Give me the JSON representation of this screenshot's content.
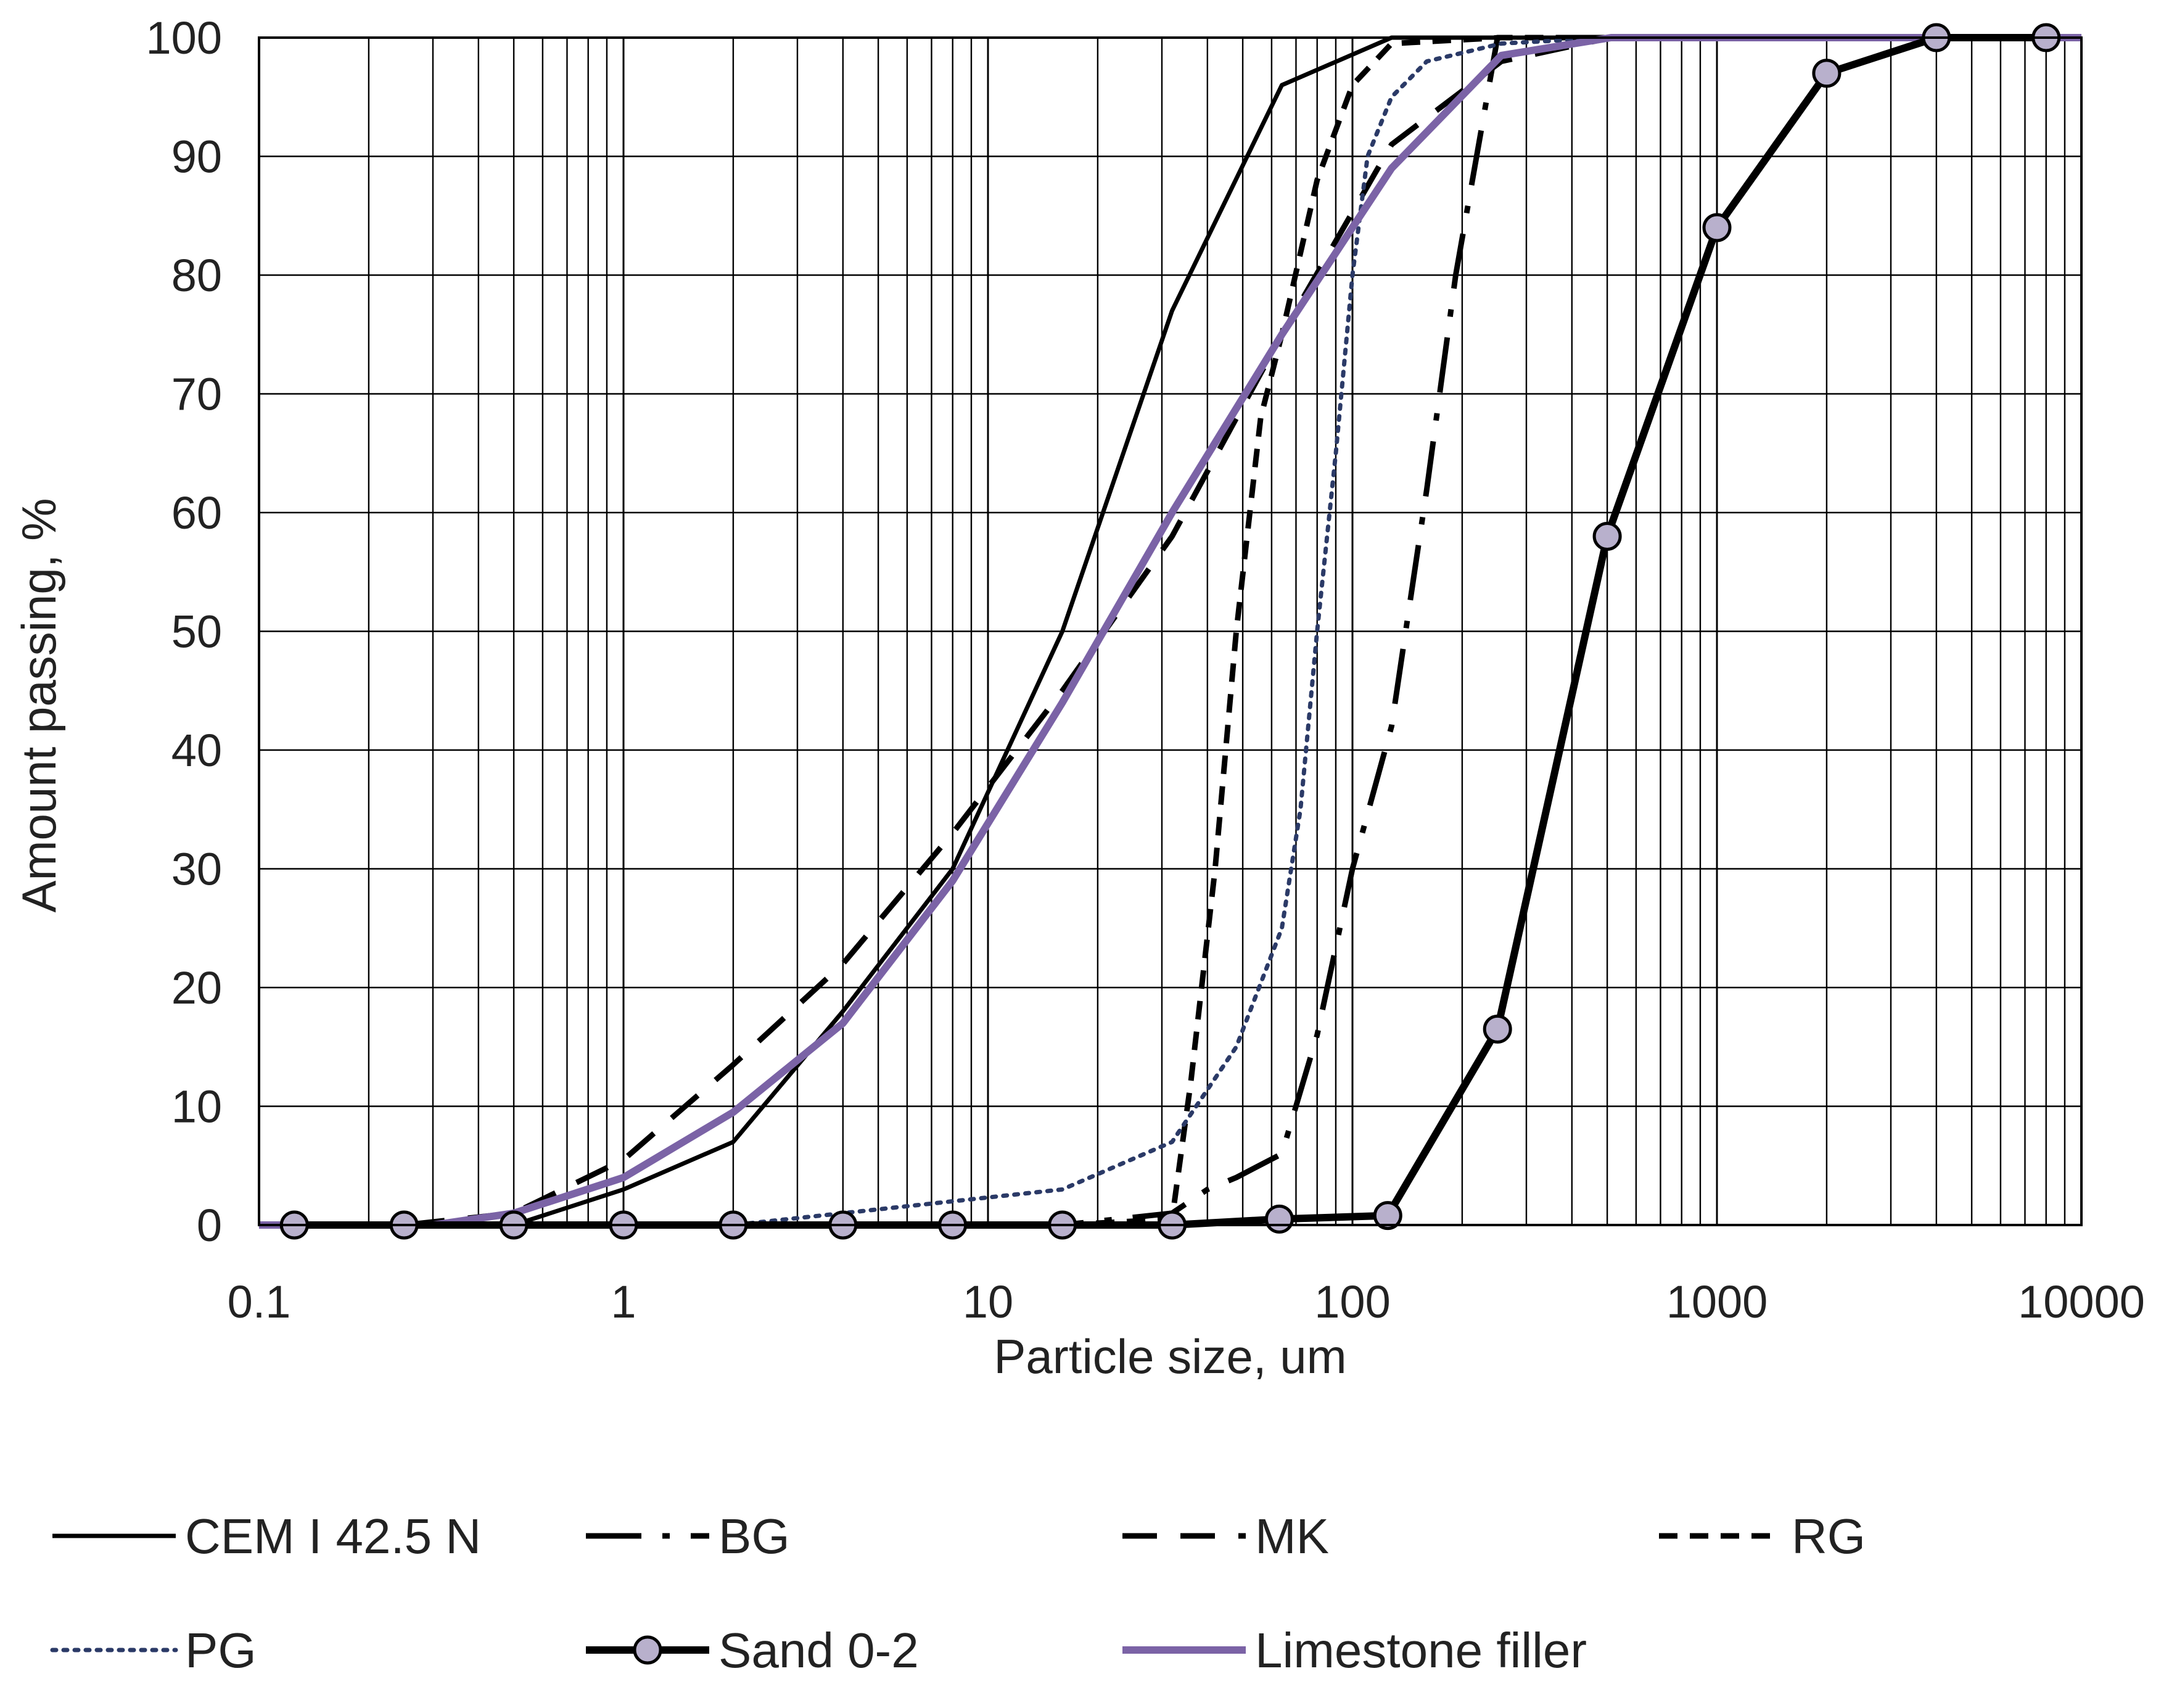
{
  "chart_data": {
    "type": "line",
    "title": "",
    "xlabel": "Particle size, um",
    "ylabel": "Amount passing, %",
    "x_scale": "log",
    "xlim": [
      0.1,
      10000
    ],
    "ylim": [
      0,
      100
    ],
    "x_ticks": [
      "0.1",
      "1",
      "10",
      "100",
      "1000",
      "10000"
    ],
    "y_ticks": [
      "0",
      "10",
      "20",
      "30",
      "40",
      "50",
      "60",
      "70",
      "80",
      "90",
      "100"
    ],
    "grid": true,
    "legend_position": "bottom",
    "series": [
      {
        "name": "CEM I 42.5 N",
        "color": "#000000",
        "style": "solid",
        "points": [
          [
            0.5,
            0
          ],
          [
            1,
            3
          ],
          [
            2,
            7
          ],
          [
            4,
            18
          ],
          [
            8,
            30
          ],
          [
            16,
            50
          ],
          [
            32,
            77
          ],
          [
            64,
            96
          ],
          [
            128,
            100
          ],
          [
            256,
            100
          ],
          [
            512,
            100
          ]
        ]
      },
      {
        "name": "BG",
        "color": "#000000",
        "style": "dash-dot",
        "points": [
          [
            0.125,
            0
          ],
          [
            2,
            0
          ],
          [
            16,
            0
          ],
          [
            32,
            1
          ],
          [
            40,
            3
          ],
          [
            48,
            4
          ],
          [
            64,
            6
          ],
          [
            80,
            16
          ],
          [
            100,
            30
          ],
          [
            128,
            42
          ],
          [
            160,
            62
          ],
          [
            192,
            80
          ],
          [
            250,
            100
          ],
          [
            512,
            100
          ]
        ]
      },
      {
        "name": "MK",
        "color": "#000000",
        "style": "dash",
        "points": [
          [
            0.125,
            0
          ],
          [
            0.25,
            0
          ],
          [
            0.5,
            1
          ],
          [
            1,
            5.5
          ],
          [
            2,
            13.5
          ],
          [
            4,
            22
          ],
          [
            8,
            33
          ],
          [
            16,
            45
          ],
          [
            32,
            58
          ],
          [
            64,
            75
          ],
          [
            128,
            91
          ],
          [
            256,
            98
          ],
          [
            512,
            100
          ]
        ]
      },
      {
        "name": "RG",
        "color": "#000000",
        "style": "short-dash",
        "points": [
          [
            0.125,
            0
          ],
          [
            16,
            0
          ],
          [
            32,
            0.5
          ],
          [
            36,
            12
          ],
          [
            42,
            30
          ],
          [
            48,
            50
          ],
          [
            56,
            68
          ],
          [
            64,
            75
          ],
          [
            80,
            88
          ],
          [
            100,
            96
          ],
          [
            128,
            99.5
          ],
          [
            256,
            100
          ],
          [
            512,
            100
          ]
        ]
      },
      {
        "name": "PG",
        "color": "#2b3a67",
        "style": "dot",
        "points": [
          [
            0.125,
            0
          ],
          [
            2,
            0
          ],
          [
            4,
            1
          ],
          [
            8,
            2
          ],
          [
            16,
            3
          ],
          [
            32,
            7
          ],
          [
            48,
            15
          ],
          [
            64,
            25
          ],
          [
            72,
            35
          ],
          [
            80,
            50
          ],
          [
            90,
            65
          ],
          [
            100,
            80
          ],
          [
            110,
            90
          ],
          [
            128,
            95
          ],
          [
            160,
            98
          ],
          [
            256,
            99.5
          ],
          [
            512,
            100
          ]
        ]
      },
      {
        "name": "Sand 0-2",
        "color": "#000000",
        "style": "solid-thick-markers",
        "marker_color": "#b8b0cc",
        "points": [
          [
            0.125,
            0
          ],
          [
            0.25,
            0
          ],
          [
            0.5,
            0
          ],
          [
            1,
            0
          ],
          [
            2,
            0
          ],
          [
            4,
            0
          ],
          [
            8,
            0
          ],
          [
            16,
            0
          ],
          [
            32,
            0
          ],
          [
            63,
            0.5
          ],
          [
            125,
            0.8
          ],
          [
            250,
            16.5
          ],
          [
            500,
            58
          ],
          [
            1000,
            84
          ],
          [
            2000,
            97
          ],
          [
            4000,
            100
          ],
          [
            8000,
            100
          ]
        ]
      },
      {
        "name": "Limestone filler",
        "color": "#7b63a6",
        "style": "solid-thick",
        "points": [
          [
            0.1,
            0
          ],
          [
            0.3,
            0
          ],
          [
            0.5,
            1
          ],
          [
            1,
            4
          ],
          [
            2,
            9.5
          ],
          [
            4,
            17
          ],
          [
            8,
            29
          ],
          [
            16,
            44
          ],
          [
            32,
            60
          ],
          [
            64,
            75
          ],
          [
            128,
            89
          ],
          [
            256,
            98.5
          ],
          [
            512,
            100
          ],
          [
            1000,
            100
          ],
          [
            10000,
            100
          ]
        ]
      }
    ]
  }
}
